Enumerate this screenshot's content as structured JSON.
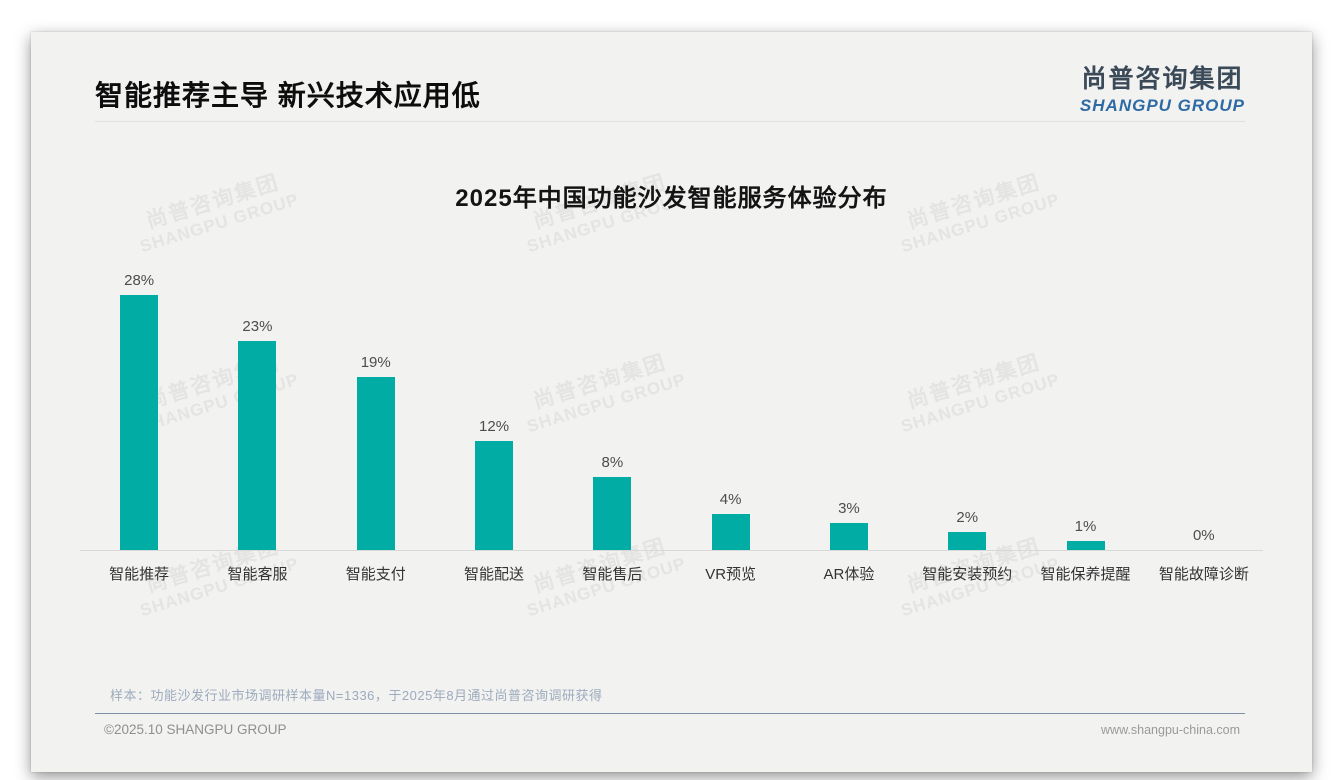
{
  "header": {
    "title": "智能推荐主导 新兴技术应用低",
    "logo": {
      "cn": "尚普咨询集团",
      "en": "SHANGPU GROUP"
    }
  },
  "watermark": {
    "cn": "尚普咨询集团",
    "en": "SHANGPU GROUP"
  },
  "chart_data": {
    "type": "bar",
    "title": "2025年中国功能沙发智能服务体验分布",
    "categories": [
      "智能推荐",
      "智能客服",
      "智能支付",
      "智能配送",
      "智能售后",
      "VR预览",
      "AR体验",
      "智能安装预约",
      "智能保养提醒",
      "智能故障诊断"
    ],
    "values": [
      28,
      23,
      19,
      12,
      8,
      4,
      3,
      2,
      1,
      0
    ],
    "value_labels": [
      "28%",
      "23%",
      "19%",
      "12%",
      "8%",
      "4%",
      "3%",
      "2%",
      "1%",
      "0%"
    ],
    "unit": "%",
    "ylim": [
      0,
      30
    ],
    "grid": false,
    "legend": "none",
    "bar_color": "#00aca3"
  },
  "note": "样本：功能沙发行业市场调研样本量N=1336，于2025年8月通过尚普咨询调研获得",
  "footer": {
    "copyright": "©2025.10 SHANGPU GROUP",
    "website": "www.shangpu-china.com"
  },
  "colors": {
    "bar": "#00aca3",
    "logo_dark": "#3b4a58",
    "logo_blue": "#2e6ba5",
    "note_text": "#9dabbd"
  }
}
